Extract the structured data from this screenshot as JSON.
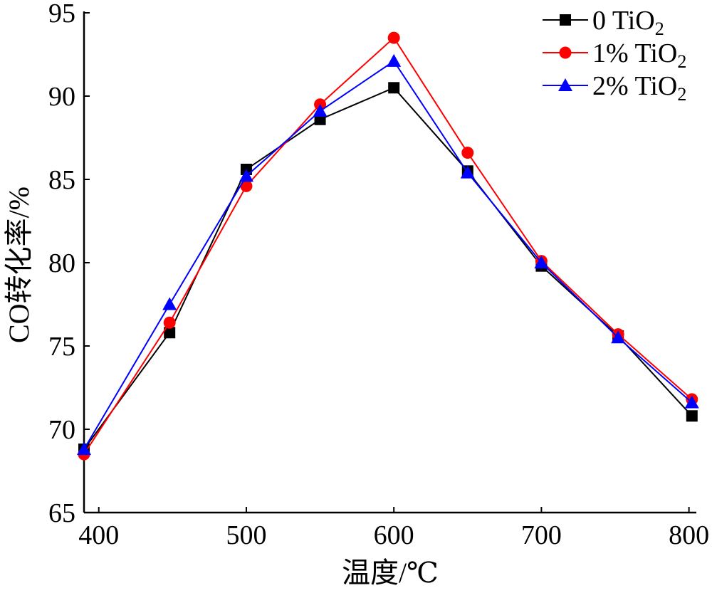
{
  "chart_data": {
    "type": "line",
    "xlabel": "温度/℃",
    "ylabel": "CO转化率/%",
    "xlim": [
      390,
      805
    ],
    "ylim": [
      65,
      95
    ],
    "xticks": [
      400,
      500,
      600,
      700,
      800
    ],
    "yticks": [
      65,
      70,
      75,
      80,
      85,
      90,
      95
    ],
    "grid": false,
    "legend_position": "top-right",
    "x": [
      390,
      448,
      500,
      550,
      600,
      650,
      700,
      752,
      802
    ],
    "series": [
      {
        "name": "0 TiO2",
        "legend_main": "0 TiO",
        "legend_sub": "2",
        "color": "#000000",
        "marker": "square",
        "values": [
          68.8,
          75.8,
          85.6,
          88.6,
          90.5,
          85.5,
          79.8,
          75.6,
          70.8
        ]
      },
      {
        "name": "1% TiO2",
        "legend_main": "1% TiO",
        "legend_sub": "2",
        "color": "#ff0000",
        "marker": "circle",
        "values": [
          68.5,
          76.4,
          84.6,
          89.5,
          93.5,
          86.6,
          80.1,
          75.7,
          71.8
        ]
      },
      {
        "name": "2% TiO2",
        "legend_main": "2% TiO",
        "legend_sub": "2",
        "color": "#0000ff",
        "marker": "triangle",
        "values": [
          68.8,
          77.5,
          85.2,
          89.1,
          92.1,
          85.4,
          80.0,
          75.5,
          71.6
        ]
      }
    ]
  }
}
